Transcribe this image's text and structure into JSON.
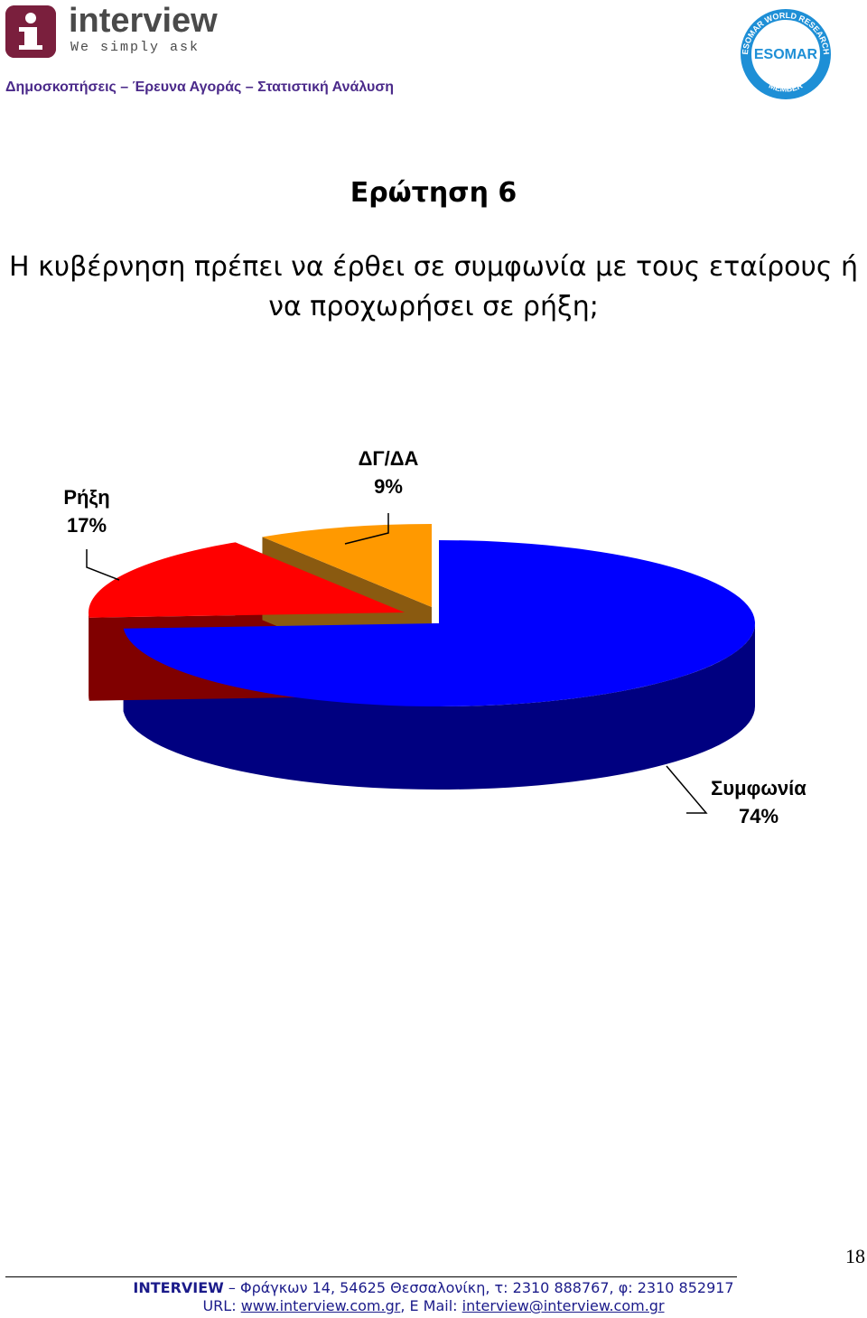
{
  "header": {
    "brand_name": "interview",
    "brand_tagline": "We simply ask",
    "subtitle": "Δημοσκοπήσεις – Έρευνα Αγοράς – Στατιστική Ανάλυση",
    "esomar_badge": {
      "center_text": "ESOMAR",
      "ring_top_text": "ESOMAR WORLD RESEARCH",
      "ring_bottom_text": "MEMBER"
    }
  },
  "question_title": "Ερώτηση 6",
  "question_text": "Η κυβέρνηση πρέπει να έρθει σε συμφωνία με τους εταίρους ή να προχωρήσει σε ρήξη;",
  "chart_data": {
    "type": "pie",
    "style": "3d-exploded",
    "slices": [
      {
        "label": "Συμφωνία",
        "value": 74,
        "display": "74%",
        "color": "#0000ff",
        "side_color": "#000080"
      },
      {
        "label": "Ρήξη",
        "value": 17,
        "display": "17%",
        "color": "#ff0000",
        "side_color": "#800000"
      },
      {
        "label": "ΔΓ/ΔΑ",
        "value": 9,
        "display": "9%",
        "color": "#ff9900",
        "side_color": "#8a5a10"
      }
    ]
  },
  "footer": {
    "page_number": "18",
    "company": "INTERVIEW",
    "address": "Φράγκων 14, 54625 Θεσσαλονίκη, τ: 2310 888767, φ: 2310 852917",
    "url_label": "URL:",
    "url": "www.interview.com.gr",
    "email_label": "E Mail:",
    "email": "interview@interview.com.gr"
  }
}
